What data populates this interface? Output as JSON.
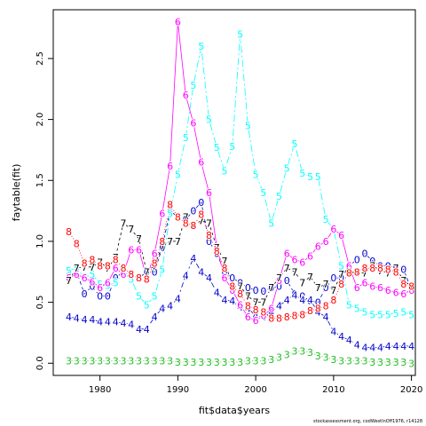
{
  "chart_data": {
    "type": "line",
    "title": "",
    "xlabel": "fit$data$years",
    "ylabel": "faytable(fit)",
    "xlim": [
      1974,
      2020.5
    ],
    "ylim": [
      -0.1,
      2.9
    ],
    "x_ticks": [
      "1980",
      "1990",
      "2000",
      "2010",
      "2020"
    ],
    "y_ticks": [
      "0.0",
      "0.5",
      "1.0",
      "1.5",
      "2.0",
      "2.5"
    ],
    "grid": false,
    "legend": "none",
    "x": [
      1976,
      1977,
      1978,
      1979,
      1980,
      1981,
      1982,
      1983,
      1984,
      1985,
      1986,
      1987,
      1988,
      1989,
      1990,
      1991,
      1992,
      1993,
      1994,
      1995,
      1996,
      1997,
      1998,
      1999,
      2000,
      2001,
      2002,
      2003,
      2004,
      2005,
      2006,
      2007,
      2008,
      2009,
      2010,
      2011,
      2012,
      2013,
      2014,
      2015,
      2016,
      2017,
      2018,
      2019,
      2020
    ],
    "series": [
      {
        "name": "0",
        "color": "#0000cc",
        "values": [
          0.72,
          0.75,
          0.57,
          0.63,
          0.55,
          0.55,
          0.7,
          0.75,
          0.72,
          0.7,
          0.75,
          0.75,
          0.95,
          1.25,
          1.2,
          1.18,
          1.25,
          1.32,
          1.0,
          0.9,
          0.75,
          0.7,
          0.66,
          0.62,
          0.6,
          0.59,
          0.62,
          0.63,
          0.68,
          0.57,
          0.55,
          0.51,
          0.5,
          0.62,
          0.7,
          0.7,
          0.8,
          0.85,
          0.9,
          0.84,
          0.8,
          0.8,
          0.79,
          0.77,
          0.6
        ]
      },
      {
        "name": "3",
        "color": "#22bb22",
        "values": [
          0.02,
          0.02,
          0.02,
          0.02,
          0.02,
          0.02,
          0.02,
          0.02,
          0.02,
          0.02,
          0.02,
          0.02,
          0.02,
          0.02,
          0.01,
          0.01,
          0.01,
          0.01,
          0.01,
          0.01,
          0.01,
          0.01,
          0.01,
          0.02,
          0.02,
          0.02,
          0.03,
          0.05,
          0.07,
          0.1,
          0.1,
          0.09,
          0.06,
          0.05,
          0.03,
          0.02,
          0.02,
          0.02,
          0.02,
          0.01,
          0.01,
          0.01,
          0.01,
          0.01,
          0.0
        ]
      },
      {
        "name": "4",
        "color": "#0000cc",
        "values": [
          0.38,
          0.37,
          0.36,
          0.36,
          0.34,
          0.34,
          0.34,
          0.33,
          0.32,
          0.28,
          0.28,
          0.38,
          0.45,
          0.47,
          0.53,
          0.72,
          0.86,
          0.75,
          0.7,
          0.58,
          0.52,
          0.51,
          0.46,
          0.45,
          0.39,
          0.38,
          0.42,
          0.47,
          0.52,
          0.56,
          0.52,
          0.52,
          0.42,
          0.38,
          0.26,
          0.22,
          0.19,
          0.15,
          0.13,
          0.13,
          0.13,
          0.14,
          0.14,
          0.14,
          0.14
        ]
      },
      {
        "name": "5",
        "color": "#00ffff",
        "values": [
          0.76,
          0.78,
          0.7,
          0.73,
          0.65,
          0.64,
          0.66,
          0.74,
          0.69,
          0.55,
          0.48,
          0.55,
          0.77,
          1.23,
          1.55,
          1.85,
          2.28,
          2.6,
          2.0,
          1.77,
          1.58,
          1.78,
          2.7,
          1.95,
          1.55,
          1.4,
          1.15,
          1.37,
          1.6,
          1.8,
          1.56,
          1.53,
          1.53,
          1.18,
          1.1,
          0.8,
          0.48,
          0.45,
          0.42,
          0.4,
          0.4,
          0.4,
          0.41,
          0.42,
          0.4
        ]
      },
      {
        "name": "6",
        "color": "#ff00ff",
        "values": [
          0.7,
          0.73,
          0.7,
          0.67,
          0.62,
          0.66,
          0.78,
          0.73,
          0.93,
          0.93,
          0.7,
          0.9,
          1.23,
          1.62,
          2.8,
          2.2,
          1.97,
          1.65,
          1.4,
          0.95,
          0.7,
          0.6,
          0.48,
          0.38,
          0.35,
          0.39,
          0.45,
          0.68,
          0.9,
          0.85,
          0.83,
          0.88,
          0.96,
          1.0,
          1.1,
          1.05,
          0.8,
          0.62,
          0.66,
          0.63,
          0.62,
          0.6,
          0.58,
          0.57,
          0.6
        ]
      },
      {
        "name": "7",
        "color": "#000000",
        "values": [
          0.68,
          0.78,
          0.79,
          0.79,
          0.83,
          0.78,
          0.87,
          1.15,
          1.1,
          1.02,
          0.75,
          0.8,
          0.96,
          1.0,
          1.0,
          1.2,
          1.13,
          1.17,
          1.15,
          0.95,
          0.84,
          0.63,
          0.63,
          0.55,
          0.5,
          0.5,
          0.62,
          0.7,
          0.78,
          0.75,
          0.66,
          0.71,
          0.62,
          0.65,
          0.6,
          0.73,
          0.75,
          0.74,
          0.74,
          0.8,
          0.76,
          0.74,
          0.78,
          0.68,
          0.63
        ]
      },
      {
        "name": "8",
        "color": "#ff0000",
        "values": [
          1.08,
          0.98,
          0.82,
          0.85,
          0.8,
          0.8,
          0.85,
          0.78,
          0.73,
          0.7,
          0.69,
          0.82,
          1.0,
          1.3,
          1.2,
          1.15,
          1.13,
          1.22,
          1.05,
          0.92,
          0.78,
          0.63,
          0.57,
          0.47,
          0.44,
          0.42,
          0.37,
          0.37,
          0.38,
          0.39,
          0.4,
          0.43,
          0.45,
          0.47,
          0.52,
          0.65,
          0.74,
          0.75,
          0.78,
          0.78,
          0.78,
          0.77,
          0.75,
          0.65,
          0.63
        ]
      }
    ]
  },
  "footer": {
    "note": "stockassessment.org, codWestInOff1976, r14128"
  }
}
